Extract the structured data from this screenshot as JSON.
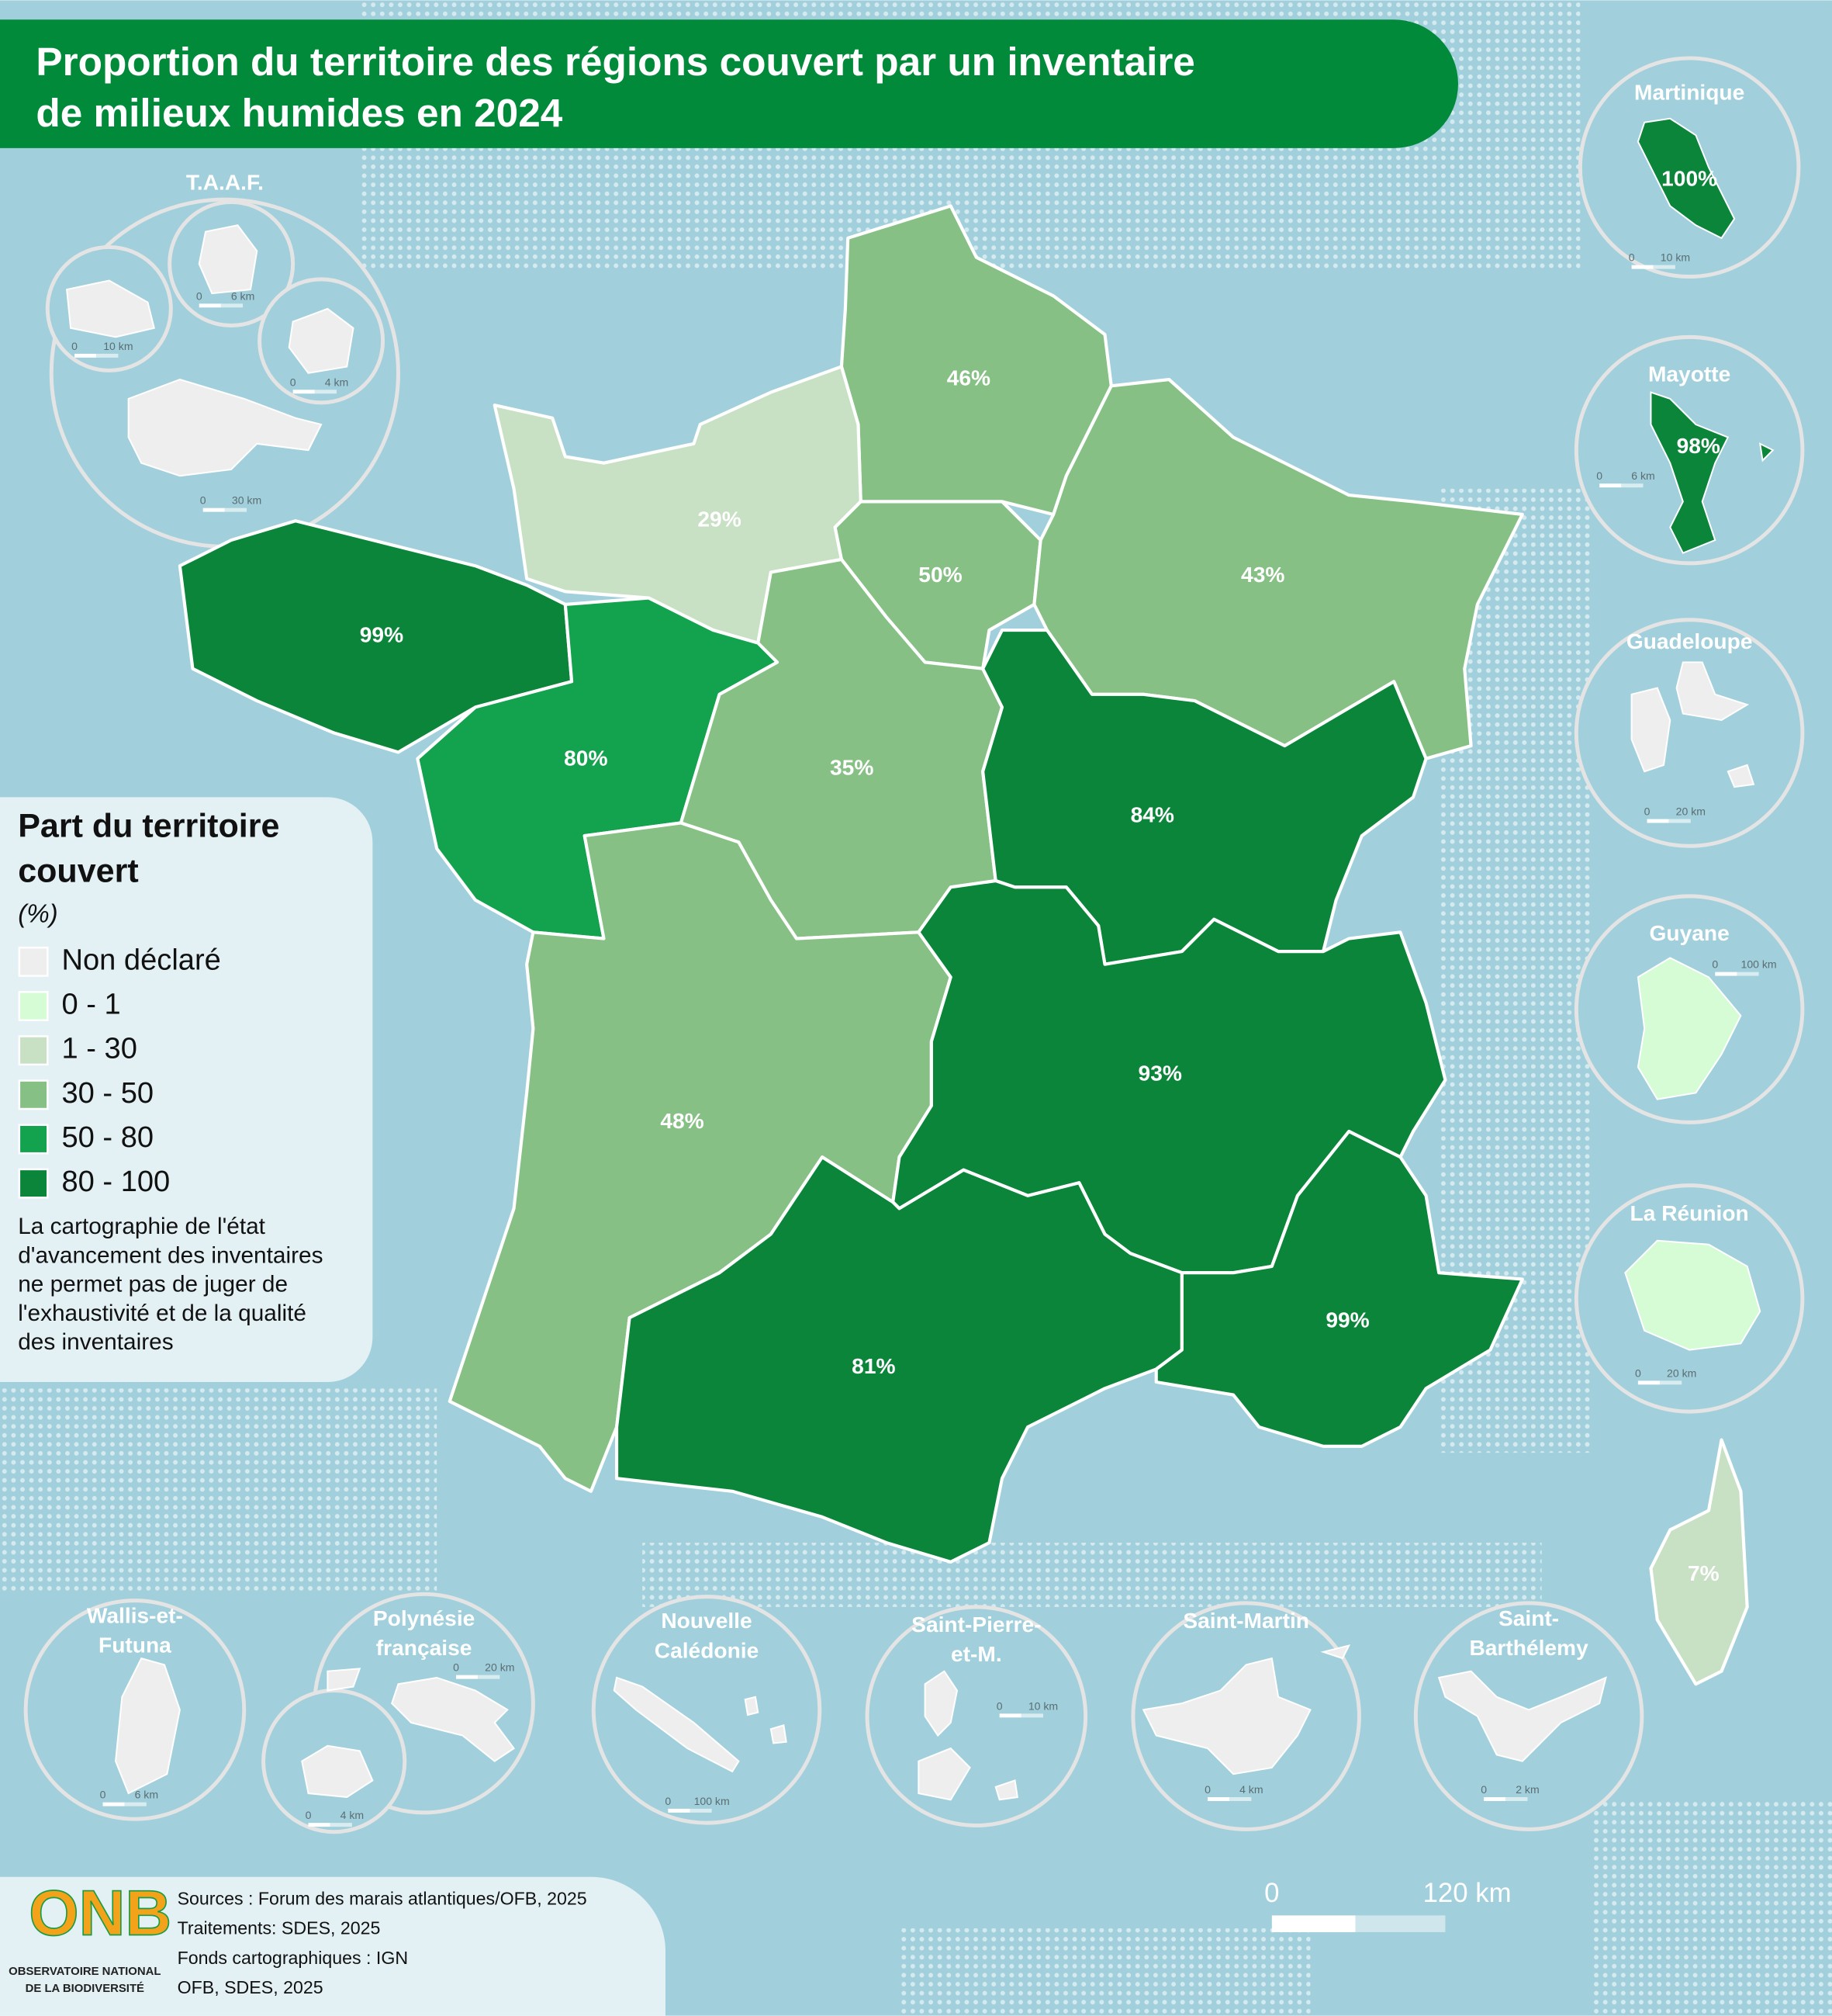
{
  "title": [
    "Proportion du territoire des régions couvert par un inventaire",
    "de milieux humides en 2024"
  ],
  "regions": [
    {
      "label": "46%",
      "color": "#86c085"
    },
    {
      "label": "29%",
      "color": "#c8e0c4"
    },
    {
      "label": "50%",
      "color": "#86c085"
    },
    {
      "label": "43%",
      "color": "#86c085"
    },
    {
      "label": "99%",
      "color": "#0b853a"
    },
    {
      "label": "80%",
      "color": "#13a24e"
    },
    {
      "label": "35%",
      "color": "#86c085"
    },
    {
      "label": "84%",
      "color": "#0b853a"
    },
    {
      "label": "48%",
      "color": "#86c085"
    },
    {
      "label": "93%",
      "color": "#0b853a"
    },
    {
      "label": "81%",
      "color": "#0b853a"
    },
    {
      "label": "99%",
      "color": "#0b853a"
    },
    {
      "label": "7%",
      "color": "#c8e0c4"
    }
  ],
  "territories": [
    {
      "name": [
        "Martinique"
      ],
      "label": "100%",
      "color": "#0b853a",
      "scales": [
        [
          "0",
          "10 km"
        ]
      ]
    },
    {
      "name": [
        "Mayotte"
      ],
      "label": "98%",
      "color": "#0b853a",
      "scales": [
        [
          "0",
          "6 km"
        ]
      ]
    },
    {
      "name": [
        "Guadeloupe"
      ],
      "color": "#eeeeee",
      "scales": [
        [
          "0",
          "20 km"
        ]
      ]
    },
    {
      "name": [
        "Guyane"
      ],
      "color": "#d6fcd6",
      "scales": [
        [
          "0",
          "100 km"
        ]
      ]
    },
    {
      "name": [
        "La Réunion"
      ],
      "color": "#d6fcd6",
      "scales": [
        [
          "0",
          "20 km"
        ]
      ]
    },
    {
      "name": [
        "T.A.A.F."
      ],
      "color": "#eeeeee",
      "scales": [
        [
          "0",
          "6 km"
        ],
        [
          "0",
          "10 km"
        ],
        [
          "0",
          "4 km"
        ],
        [
          "0",
          "30 km"
        ]
      ]
    },
    {
      "name": [
        "Wallis-et-",
        "Futuna"
      ],
      "color": "#eeeeee",
      "scales": [
        [
          "0",
          "6 km"
        ]
      ]
    },
    {
      "name": [
        "Polynésie",
        "française"
      ],
      "color": "#eeeeee",
      "scales": [
        [
          "0",
          "20 km"
        ],
        [
          "0",
          "4 km"
        ]
      ]
    },
    {
      "name": [
        "Nouvelle",
        "Calédonie"
      ],
      "color": "#eeeeee",
      "scales": [
        [
          "0",
          "100 km"
        ]
      ]
    },
    {
      "name": [
        "Saint-Pierre-",
        "et-M."
      ],
      "color": "#eeeeee",
      "scales": [
        [
          "0",
          "10 km"
        ]
      ]
    },
    {
      "name": [
        "Saint-Martin"
      ],
      "color": "#eeeeee",
      "scales": [
        [
          "0",
          "4 km"
        ]
      ]
    },
    {
      "name": [
        "Saint-",
        "Barthélemy"
      ],
      "color": "#eeeeee",
      "scales": [
        [
          "0",
          "2 km"
        ]
      ]
    }
  ],
  "legend": {
    "title": [
      "Part du territoire",
      "couvert"
    ],
    "unit": "(%)",
    "items": [
      {
        "label": "Non déclaré",
        "color": "#eeeeee"
      },
      {
        "label": "0 - 1",
        "color": "#d6fcd6"
      },
      {
        "label": "1 - 30",
        "color": "#c8e0c4"
      },
      {
        "label": "30 - 50",
        "color": "#86c085"
      },
      {
        "label": "50 - 80",
        "color": "#13a24e"
      },
      {
        "label": "80 - 100",
        "color": "#0b853a"
      }
    ],
    "note": [
      "La cartographie de l'état",
      "d'avancement des inventaires",
      "ne permet pas de juger de",
      "l'exhaustivité et de la qualité",
      "des inventaires"
    ]
  },
  "scale_bar": [
    "0",
    "120 km"
  ],
  "sources": [
    "Sources : Forum des marais atlantiques/OFB, 2025",
    "Traitements: SDES, 2025",
    "Fonds cartographiques : IGN",
    "OFB, SDES, 2025"
  ],
  "logo": {
    "name": "ONB",
    "lines": [
      "OBSERVATOIRE NATIONAL",
      "DE LA BIODIVERSITÉ"
    ]
  }
}
